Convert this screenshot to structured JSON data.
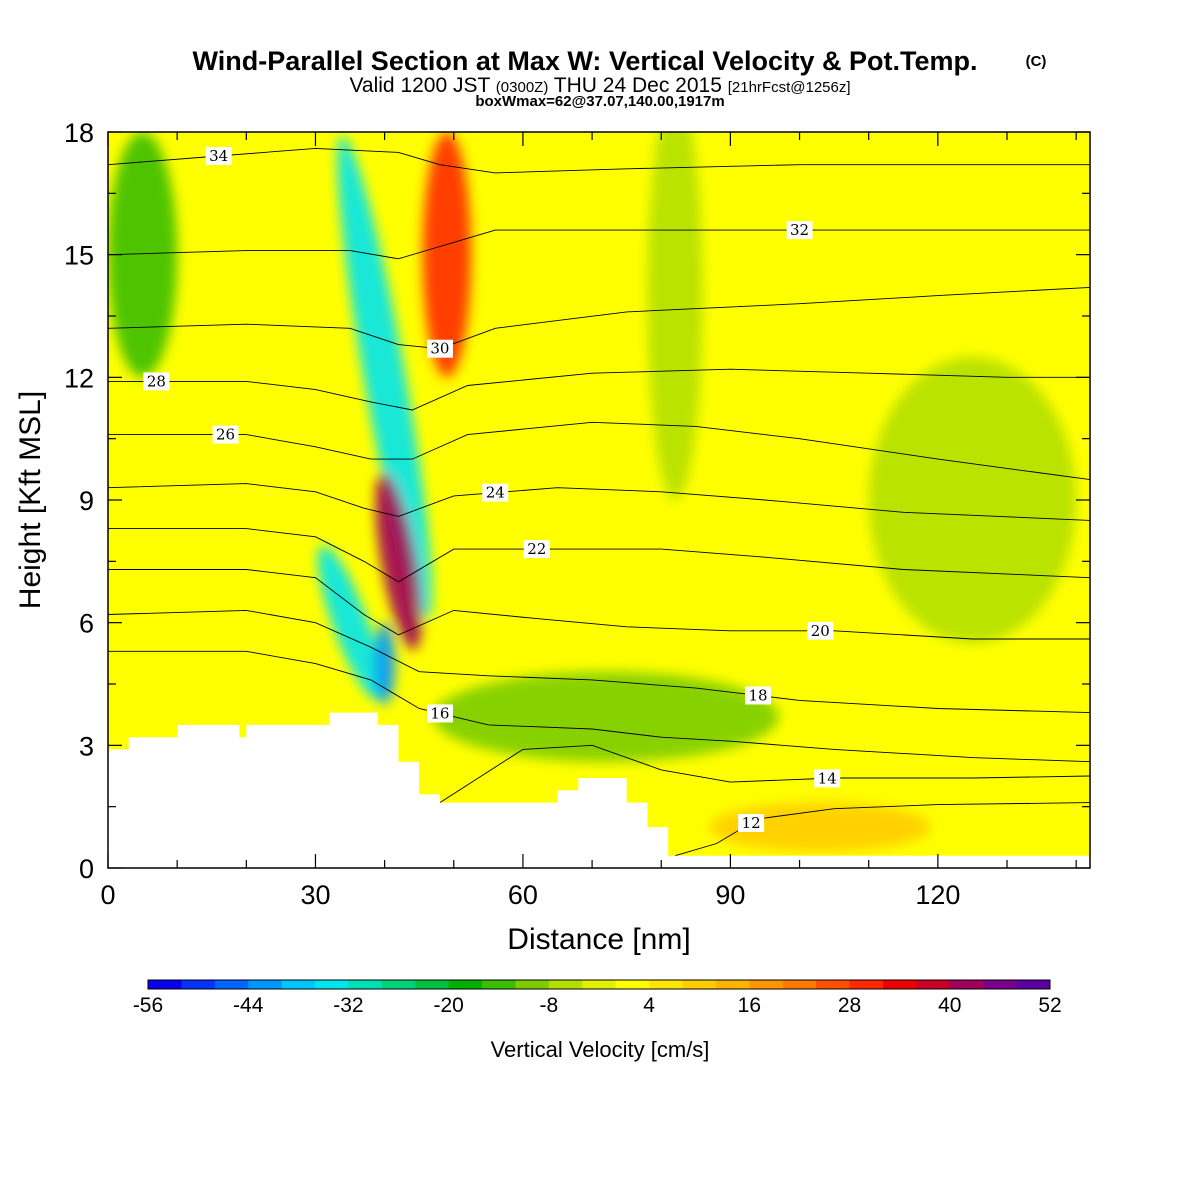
{
  "chart_data": {
    "type": "heatmap",
    "title": "Wind-Parallel Section at Max W: Vertical Velocity & Pot.Temp.",
    "title_mark": "(C)",
    "subtitle_main": "Valid 1200 JST",
    "subtitle_z": "(0300Z)",
    "subtitle_date": "THU 24 Dec 2015",
    "subtitle_fcst": "[21hrFcst@1256z]",
    "subtitle2": "boxWmax=62@37.07,140.00,1917m",
    "xlabel": "Distance [nm]",
    "ylabel": "Height [Kft MSL]",
    "xlim": [
      0,
      142
    ],
    "ylim": [
      0,
      18
    ],
    "xticks": [
      0,
      30,
      60,
      90,
      120
    ],
    "yticks": [
      0,
      3,
      6,
      9,
      12,
      15,
      18
    ],
    "colorbar": {
      "label": "Vertical Velocity [cm/s]",
      "range": [
        -56,
        52
      ],
      "tick_values": [
        -56,
        -44,
        -32,
        -20,
        -8,
        4,
        16,
        28,
        40,
        52
      ],
      "tick_labels": [
        "-56",
        "-44",
        "-32",
        "-20",
        "-8",
        "4",
        "16",
        "28",
        "40",
        "52"
      ],
      "colors": [
        "#0a00f0",
        "#0632fa",
        "#0064ff",
        "#0096ff",
        "#00c8ff",
        "#00e6ee",
        "#00e0b4",
        "#00d278",
        "#00c040",
        "#00b000",
        "#3cbe00",
        "#7ccc00",
        "#b4e000",
        "#e0f000",
        "#ffff00",
        "#ffe600",
        "#ffcc00",
        "#ffb400",
        "#ff9600",
        "#ff7800",
        "#ff5000",
        "#ff2800",
        "#ee0000",
        "#c80028",
        "#a0005a",
        "#78008c",
        "#5a00a0"
      ]
    },
    "field_features": [
      {
        "x": 40,
        "y": 12,
        "rx": 3,
        "ry": 6,
        "rot": -10,
        "w": -35
      },
      {
        "x": 49,
        "y": 15,
        "rx": 3.5,
        "ry": 3,
        "rot": 0,
        "w": 30
      },
      {
        "x": 42,
        "y": 7.5,
        "rx": 2.5,
        "ry": 2.2,
        "rot": -10,
        "w": 40
      },
      {
        "x": 35,
        "y": 6,
        "rx": 2.5,
        "ry": 2,
        "rot": -20,
        "w": -34
      },
      {
        "x": 40,
        "y": 5,
        "rx": 1.5,
        "ry": 1,
        "rot": 0,
        "w": -44
      },
      {
        "x": 5,
        "y": 15,
        "rx": 5,
        "ry": 3,
        "rot": 0,
        "w": -13
      },
      {
        "x": 82,
        "y": 14,
        "rx": 4,
        "ry": 5,
        "rot": 0,
        "w": -8
      },
      {
        "x": 125,
        "y": 9,
        "rx": 15,
        "ry": 3.5,
        "rot": 0,
        "w": -7
      },
      {
        "x": 72,
        "y": 3.7,
        "rx": 25,
        "ry": 1.1,
        "rot": 0,
        "w": -10
      },
      {
        "x": 103,
        "y": 1,
        "rx": 16,
        "ry": 0.6,
        "rot": 0,
        "w": 8
      }
    ],
    "terrain": [
      [
        0,
        2.9
      ],
      [
        3,
        2.9
      ],
      [
        3,
        3.2
      ],
      [
        10,
        3.2
      ],
      [
        10,
        3.5
      ],
      [
        19,
        3.5
      ],
      [
        19,
        3.2
      ],
      [
        20,
        3.2
      ],
      [
        20,
        3.5
      ],
      [
        32,
        3.5
      ],
      [
        32,
        3.8
      ],
      [
        39,
        3.8
      ],
      [
        39,
        3.5
      ],
      [
        42,
        3.5
      ],
      [
        42,
        2.6
      ],
      [
        45,
        2.6
      ],
      [
        45,
        1.8
      ],
      [
        48,
        1.8
      ],
      [
        48,
        1.6
      ],
      [
        65,
        1.6
      ],
      [
        65,
        1.9
      ],
      [
        68,
        1.9
      ],
      [
        68,
        2.2
      ],
      [
        75,
        2.2
      ],
      [
        75,
        1.6
      ],
      [
        78,
        1.6
      ],
      [
        78,
        1.0
      ],
      [
        81,
        1.0
      ],
      [
        81,
        0.3
      ],
      [
        142,
        0.3
      ]
    ],
    "isentropes": [
      {
        "theta": 12,
        "points": [
          [
            82,
            0.3
          ],
          [
            88,
            0.6
          ],
          [
            94,
            1.2
          ],
          [
            105,
            1.45
          ],
          [
            120,
            1.55
          ],
          [
            142,
            1.6
          ]
        ],
        "label_x": 93
      },
      {
        "theta": 14,
        "points": [
          [
            48,
            1.6
          ],
          [
            60,
            2.9
          ],
          [
            70,
            3.0
          ],
          [
            80,
            2.4
          ],
          [
            90,
            2.1
          ],
          [
            105,
            2.2
          ],
          [
            125,
            2.2
          ],
          [
            142,
            2.25
          ]
        ],
        "label_x": 104
      },
      {
        "theta": 16,
        "points": [
          [
            0,
            5.3
          ],
          [
            20,
            5.3
          ],
          [
            30,
            5.0
          ],
          [
            38,
            4.6
          ],
          [
            45,
            3.9
          ],
          [
            55,
            3.5
          ],
          [
            70,
            3.4
          ],
          [
            80,
            3.2
          ],
          [
            90,
            3.1
          ],
          [
            105,
            2.9
          ],
          [
            125,
            2.7
          ],
          [
            142,
            2.6
          ]
        ],
        "label_x": 48
      },
      {
        "theta": 18,
        "points": [
          [
            0,
            6.2
          ],
          [
            20,
            6.3
          ],
          [
            30,
            6.0
          ],
          [
            38,
            5.4
          ],
          [
            45,
            4.8
          ],
          [
            55,
            4.7
          ],
          [
            70,
            4.6
          ],
          [
            85,
            4.4
          ],
          [
            100,
            4.1
          ],
          [
            120,
            3.9
          ],
          [
            142,
            3.8
          ]
        ],
        "label_x": 94
      },
      {
        "theta": 20,
        "points": [
          [
            0,
            7.3
          ],
          [
            20,
            7.3
          ],
          [
            30,
            7.1
          ],
          [
            37,
            6.2
          ],
          [
            42,
            5.7
          ],
          [
            50,
            6.3
          ],
          [
            62,
            6.1
          ],
          [
            75,
            5.9
          ],
          [
            90,
            5.8
          ],
          [
            105,
            5.8
          ],
          [
            125,
            5.6
          ],
          [
            142,
            5.6
          ]
        ],
        "label_x": 103
      },
      {
        "theta": 22,
        "points": [
          [
            0,
            8.3
          ],
          [
            20,
            8.3
          ],
          [
            30,
            8.1
          ],
          [
            37,
            7.5
          ],
          [
            42,
            7.0
          ],
          [
            50,
            7.8
          ],
          [
            65,
            7.8
          ],
          [
            80,
            7.8
          ],
          [
            95,
            7.6
          ],
          [
            115,
            7.3
          ],
          [
            142,
            7.1
          ]
        ],
        "label_x": 62
      },
      {
        "theta": 24,
        "points": [
          [
            0,
            9.3
          ],
          [
            20,
            9.4
          ],
          [
            30,
            9.2
          ],
          [
            37,
            8.8
          ],
          [
            42,
            8.6
          ],
          [
            50,
            9.1
          ],
          [
            65,
            9.3
          ],
          [
            80,
            9.2
          ],
          [
            95,
            9.0
          ],
          [
            115,
            8.7
          ],
          [
            142,
            8.5
          ]
        ],
        "label_x": 56
      },
      {
        "theta": 26,
        "points": [
          [
            0,
            10.6
          ],
          [
            20,
            10.6
          ],
          [
            30,
            10.3
          ],
          [
            38,
            10.0
          ],
          [
            44,
            10.0
          ],
          [
            52,
            10.6
          ],
          [
            70,
            10.9
          ],
          [
            85,
            10.8
          ],
          [
            100,
            10.5
          ],
          [
            120,
            10.0
          ],
          [
            142,
            9.5
          ]
        ],
        "label_x": 17
      },
      {
        "theta": 28,
        "points": [
          [
            0,
            11.9
          ],
          [
            20,
            11.9
          ],
          [
            30,
            11.7
          ],
          [
            38,
            11.4
          ],
          [
            44,
            11.2
          ],
          [
            52,
            11.8
          ],
          [
            70,
            12.1
          ],
          [
            90,
            12.2
          ],
          [
            110,
            12.1
          ],
          [
            130,
            12.0
          ],
          [
            142,
            12.0
          ]
        ],
        "label_x": 7
      },
      {
        "theta": 30,
        "points": [
          [
            0,
            13.2
          ],
          [
            20,
            13.3
          ],
          [
            35,
            13.2
          ],
          [
            42,
            12.8
          ],
          [
            48,
            12.7
          ],
          [
            56,
            13.2
          ],
          [
            75,
            13.6
          ],
          [
            100,
            13.8
          ],
          [
            120,
            14.0
          ],
          [
            142,
            14.2
          ]
        ],
        "label_x": 48
      },
      {
        "theta": 32,
        "points": [
          [
            0,
            15.0
          ],
          [
            20,
            15.1
          ],
          [
            35,
            15.1
          ],
          [
            42,
            14.9
          ],
          [
            48,
            15.2
          ],
          [
            56,
            15.6
          ],
          [
            75,
            15.6
          ],
          [
            100,
            15.6
          ],
          [
            142,
            15.6
          ]
        ],
        "label_x": 100
      },
      {
        "theta": 34,
        "points": [
          [
            0,
            17.2
          ],
          [
            15,
            17.4
          ],
          [
            30,
            17.6
          ],
          [
            42,
            17.5
          ],
          [
            48,
            17.2
          ],
          [
            56,
            17.0
          ],
          [
            75,
            17.1
          ],
          [
            100,
            17.2
          ],
          [
            142,
            17.2
          ]
        ],
        "label_x": 16
      }
    ],
    "contour_labels": [
      "12",
      "14",
      "16",
      "18",
      "20",
      "22",
      "24",
      "26",
      "28",
      "30",
      "32",
      "34"
    ]
  }
}
